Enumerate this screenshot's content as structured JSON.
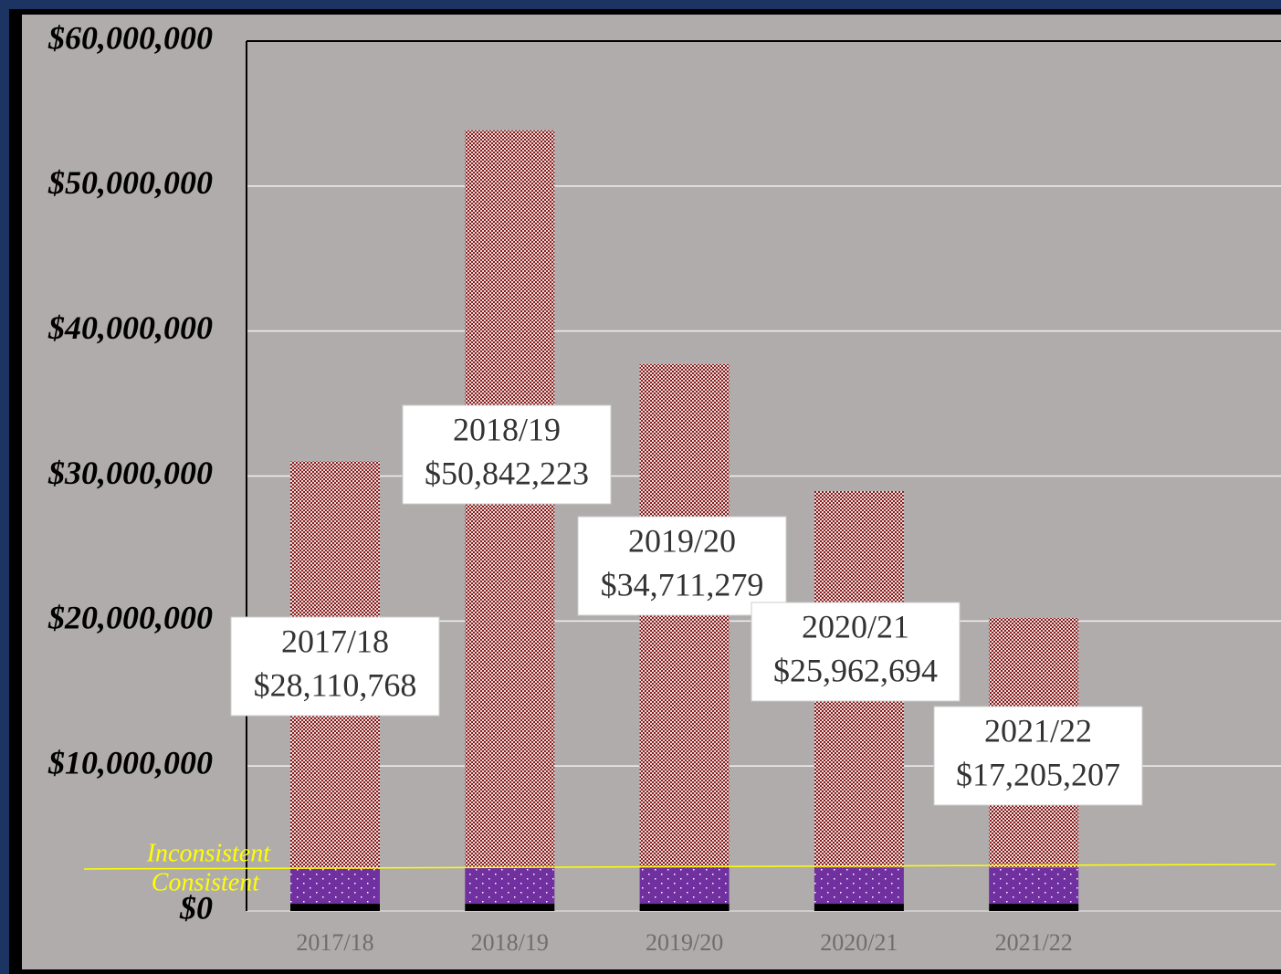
{
  "chart_data": {
    "type": "stacked_bar",
    "categories": [
      "2017/18",
      "2018/19",
      "2019/20",
      "2020/21",
      "2021/22"
    ],
    "series": [
      {
        "color": "#000000",
        "values": [
          500000,
          500000,
          500000,
          500000,
          500000
        ]
      },
      {
        "color": "#7030a0",
        "values": [
          2400000,
          2500000,
          2500000,
          2500000,
          2500000
        ]
      },
      {
        "color": "#8b1a1a",
        "values": [
          28110768,
          50842223,
          34711279,
          25962694,
          17205207
        ],
        "value_labels": [
          "$28,110,768",
          "$50,842,223",
          "$34,711,279",
          "$25,962,694",
          "$17,205,207"
        ]
      }
    ],
    "ylim": [
      0,
      60000000
    ],
    "yticks": [
      {
        "value": 0,
        "label": "$0"
      },
      {
        "value": 10000000,
        "label": "$10,000,000"
      },
      {
        "value": 20000000,
        "label": "$20,000,000"
      },
      {
        "value": 30000000,
        "label": "$30,000,000"
      },
      {
        "value": 40000000,
        "label": "$40,000,000"
      },
      {
        "value": 50000000,
        "label": "$50,000,000"
      },
      {
        "value": 60000000,
        "label": "$60,000,000"
      }
    ],
    "grid": true,
    "reference_line": {
      "value": 2900000,
      "labels": [
        "Inconsistent",
        "Consistent"
      ],
      "color": "#ffff00"
    }
  }
}
